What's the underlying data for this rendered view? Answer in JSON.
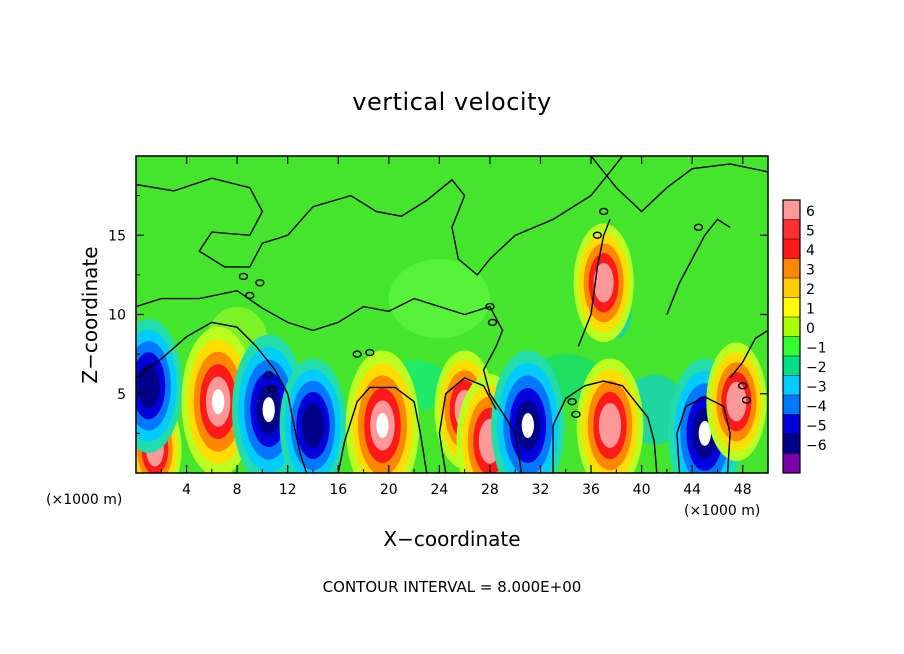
{
  "chart_data": {
    "type": "heatmap",
    "title": "vertical velocity",
    "xlabel": "X−coordinate",
    "ylabel": "Z−coordinate",
    "x_units": "(×1000 m)",
    "z_units": "(×1000 m)",
    "xlim": [
      0,
      50
    ],
    "ylim": [
      0,
      20
    ],
    "x_ticks": [
      "4",
      "8",
      "12",
      "16",
      "20",
      "24",
      "28",
      "32",
      "36",
      "40",
      "44",
      "48"
    ],
    "y_ticks": [
      "5",
      "10",
      "15"
    ],
    "colorbar": {
      "levels": [
        "6",
        "5",
        "4",
        "3",
        "2",
        "1",
        "0",
        "−1",
        "−2",
        "−3",
        "−4",
        "−5",
        "−6"
      ],
      "colors": [
        "#ff9999",
        "#ff3030",
        "#ff1a1a",
        "#ff8800",
        "#ffcc00",
        "#ffff00",
        "#aaff00",
        "#33ff33",
        "#00dd88",
        "#00ccff",
        "#0077ff",
        "#0000dd",
        "#000088",
        "#7700aa"
      ]
    },
    "features": [
      {
        "x": 1.5,
        "z": 1.5,
        "w": 3
      },
      {
        "x": 1.0,
        "z": 5.5,
        "w": -5
      },
      {
        "x": 6.5,
        "z": 4.5,
        "w": 6
      },
      {
        "x": 10.5,
        "z": 4.0,
        "w": -6
      },
      {
        "x": 14.0,
        "z": 3.0,
        "w": -5
      },
      {
        "x": 19.5,
        "z": 3.0,
        "w": 6
      },
      {
        "x": 26.0,
        "z": 4.0,
        "w": 4
      },
      {
        "x": 28.0,
        "z": 2.0,
        "w": 5
      },
      {
        "x": 31.0,
        "z": 3.0,
        "w": -6
      },
      {
        "x": 37.5,
        "z": 3.0,
        "w": 5
      },
      {
        "x": 37.0,
        "z": 12.0,
        "w": 4
      },
      {
        "x": 45.0,
        "z": 2.5,
        "w": -6
      },
      {
        "x": 47.5,
        "z": 4.5,
        "w": 4
      }
    ],
    "annotation": "CONTOUR INTERVAL = 8.000E+00"
  }
}
